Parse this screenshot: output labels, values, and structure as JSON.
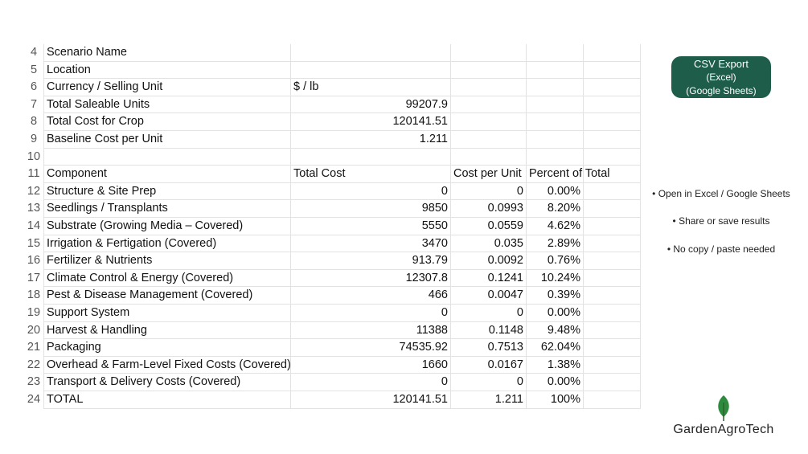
{
  "sheet": {
    "rows": [
      {
        "num": 4,
        "label": "Scenario Name"
      },
      {
        "num": 5,
        "label": "Location"
      },
      {
        "num": 6,
        "label": "Currency / Selling Unit",
        "total": "$ / lb"
      },
      {
        "num": 7,
        "label": "Total Saleable Units",
        "total": 99207.9
      },
      {
        "num": 8,
        "label": "Total Cost for Crop",
        "total": 120141.51
      },
      {
        "num": 9,
        "label": "Baseline Cost per Unit",
        "total": 1.211
      },
      {
        "num": 10
      },
      {
        "num": 11,
        "label": "Component",
        "total": "Total Cost",
        "per_unit": "Cost per Unit",
        "percent": "Percent of Total"
      },
      {
        "num": 12,
        "label": "Structure & Site Prep",
        "total": 0,
        "per_unit": 0,
        "percent": "0.00%"
      },
      {
        "num": 13,
        "label": "Seedlings / Transplants",
        "total": 9850,
        "per_unit": 0.0993,
        "percent": "8.20%"
      },
      {
        "num": 14,
        "label": "Substrate (Growing Media – Covered)",
        "total": 5550,
        "per_unit": 0.0559,
        "percent": "4.62%"
      },
      {
        "num": 15,
        "label": "Irrigation & Fertigation (Covered)",
        "total": 3470,
        "per_unit": 0.035,
        "percent": "2.89%"
      },
      {
        "num": 16,
        "label": "Fertilizer & Nutrients",
        "total": 913.79,
        "per_unit": 0.0092,
        "percent": "0.76%"
      },
      {
        "num": 17,
        "label": "Climate Control & Energy (Covered)",
        "total": 12307.8,
        "per_unit": 0.1241,
        "percent": "10.24%"
      },
      {
        "num": 18,
        "label": "Pest & Disease Management (Covered)",
        "total": 466,
        "per_unit": 0.0047,
        "percent": "0.39%"
      },
      {
        "num": 19,
        "label": "Support System",
        "total": 0,
        "per_unit": 0,
        "percent": "0.00%"
      },
      {
        "num": 20,
        "label": "Harvest & Handling",
        "total": 11388,
        "per_unit": 0.1148,
        "percent": "9.48%"
      },
      {
        "num": 21,
        "label": "Packaging",
        "total": 74535.92,
        "per_unit": 0.7513,
        "percent": "62.04%"
      },
      {
        "num": 22,
        "label": "Overhead & Farm-Level Fixed Costs (Covered)",
        "total": 1660,
        "per_unit": 0.0167,
        "percent": "1.38%"
      },
      {
        "num": 23,
        "label": "Transport & Delivery Costs (Covered)",
        "total": 0,
        "per_unit": 0,
        "percent": "0.00%"
      },
      {
        "num": 24,
        "label": "TOTAL",
        "total": 120141.51,
        "per_unit": 1.211,
        "percent": "100%"
      }
    ]
  },
  "export_button": {
    "lines": [
      "CSV Export",
      "(Excel)",
      "(Google Sheets)"
    ]
  },
  "notes": [
    "• Open in Excel / Google  Sheets",
    "• Share or save results",
    "• No copy / paste needed"
  ],
  "brand": "GardenAgroTech"
}
